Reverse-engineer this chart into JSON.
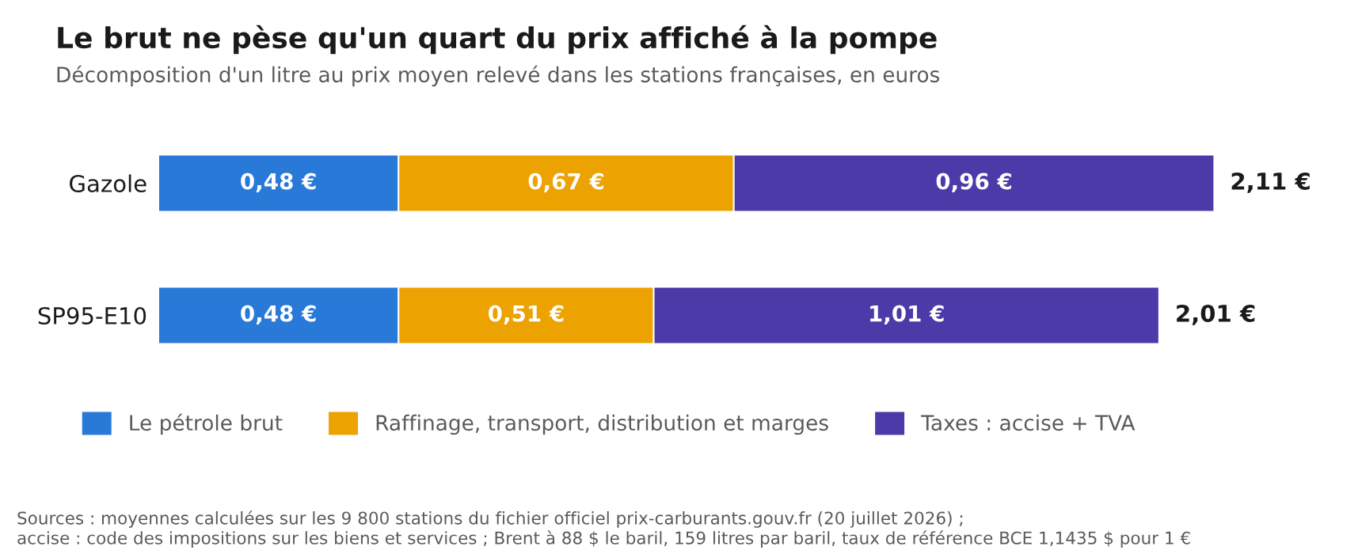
{
  "chart_data": {
    "type": "bar",
    "orientation": "horizontal",
    "stacked": true,
    "title": "Le brut ne pèse qu'un quart du prix affiché à la pompe",
    "subtitle": "Décomposition d'un litre au prix moyen relevé dans les stations françaises, en euros",
    "categories": [
      "Gazole",
      "SP95-E10"
    ],
    "series": [
      {
        "name": "Le pétrole brut",
        "color": "#2979d8",
        "values": [
          0.48,
          0.48
        ],
        "value_labels": [
          "0,48 €",
          "0,48 €"
        ]
      },
      {
        "name": "Raffinage, transport, distribution et marges",
        "color": "#eca200",
        "values": [
          0.67,
          0.51
        ],
        "value_labels": [
          "0,67 €",
          "0,51 €"
        ]
      },
      {
        "name": "Taxes : accise + TVA",
        "color": "#4b3aa7",
        "values": [
          0.96,
          1.01
        ],
        "value_labels": [
          "0,96 €",
          "1,01 €"
        ]
      }
    ],
    "totals": [
      "2,11 €",
      "2,01 €"
    ],
    "legend": "bottom",
    "grid": false,
    "tick_labels": "y",
    "annotations": [
      "Sources : moyennes calculées sur les 9 800 stations du fichier officiel prix-carburants.gouv.fr (20 juillet 2026) ;\naccise : code des impositions sur les biens et services ; Brent à 88 $ le baril, 159 litres par baril, taux de référence BCE 1,1435 $ pour 1 €"
    ]
  }
}
